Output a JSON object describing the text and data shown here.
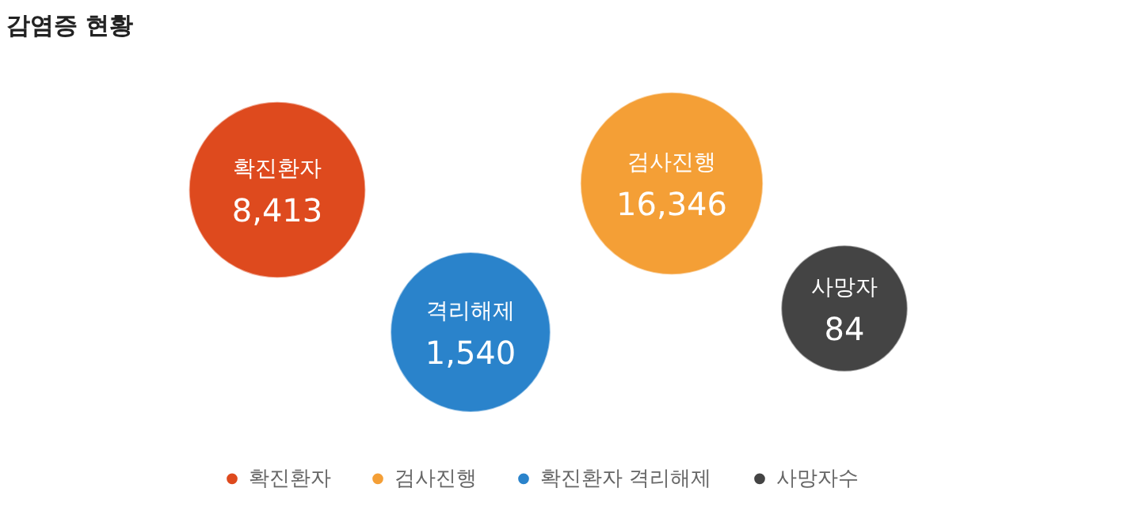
{
  "chart_data": {
    "type": "other",
    "title": "감염증 현황",
    "categories": [
      "확진환자",
      "검사진행",
      "격리해제",
      "사망자"
    ],
    "series": [
      {
        "name": "확진환자",
        "color": "#de4a1e",
        "values": [
          8413,
          null,
          null,
          null
        ],
        "value_labels": [
          "8,413",
          null,
          null,
          null
        ]
      },
      {
        "name": "검사진행",
        "color": "#f49f36",
        "values": [
          null,
          16346,
          null,
          null
        ],
        "value_labels": [
          null,
          "16,346",
          null,
          null
        ]
      },
      {
        "name": "확진환자 격리해제",
        "color": "#2a83cb",
        "values": [
          null,
          null,
          1540,
          null
        ],
        "value_labels": [
          null,
          null,
          "1,540",
          null
        ]
      },
      {
        "name": "사망자수",
        "color": "#444444",
        "values": [
          null,
          null,
          null,
          84
        ],
        "value_labels": [
          null,
          null,
          null,
          "84"
        ]
      }
    ],
    "legend": "bottom"
  }
}
